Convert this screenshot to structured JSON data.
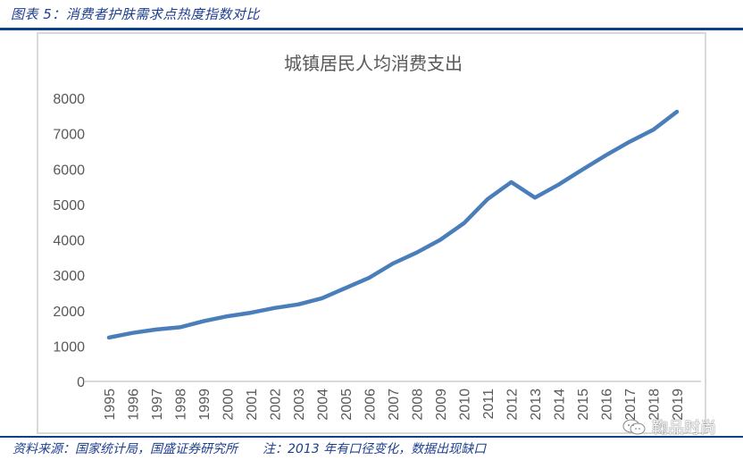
{
  "header": {
    "caption": "图表 5：消费者护肤需求点热度指数对比"
  },
  "footer": {
    "source": "资料来源：国家统计局，国盛证券研究所",
    "note": "注：2013 年有口径变化，数据出现缺口"
  },
  "watermark": {
    "icon": "wechat-icon",
    "text": "鞠品时尚"
  },
  "colors": {
    "rule": "#0e3f8c",
    "caption_text": "#1f3f8f",
    "line": "#4a7ebb",
    "axis_text": "#595959",
    "gridline": "#d9d9d9",
    "frame": "#d9d9d9"
  },
  "chart_data": {
    "type": "line",
    "title": "城镇居民人均消费支出",
    "xlabel": "",
    "ylabel": "",
    "ylim": [
      0,
      8000
    ],
    "yticks": [
      0,
      1000,
      2000,
      3000,
      4000,
      5000,
      6000,
      7000,
      8000
    ],
    "grid": false,
    "legend": null,
    "x": [
      "1995",
      "1996",
      "1997",
      "1998",
      "1999",
      "2000",
      "2001",
      "2002",
      "2003",
      "2004",
      "2005",
      "2006",
      "2007",
      "2008",
      "2009",
      "2010",
      "2011",
      "2012",
      "2013",
      "2014",
      "2015",
      "2016",
      "2017",
      "2018",
      "2019"
    ],
    "series": [
      {
        "name": "城镇居民人均消费支出",
        "values": [
          1240,
          1370,
          1465,
          1530,
          1700,
          1840,
          1940,
          2075,
          2175,
          2350,
          2640,
          2930,
          3330,
          3640,
          4000,
          4470,
          5150,
          5630,
          5190,
          5560,
          5980,
          6390,
          6770,
          7110,
          7620
        ]
      }
    ],
    "annotations": []
  }
}
